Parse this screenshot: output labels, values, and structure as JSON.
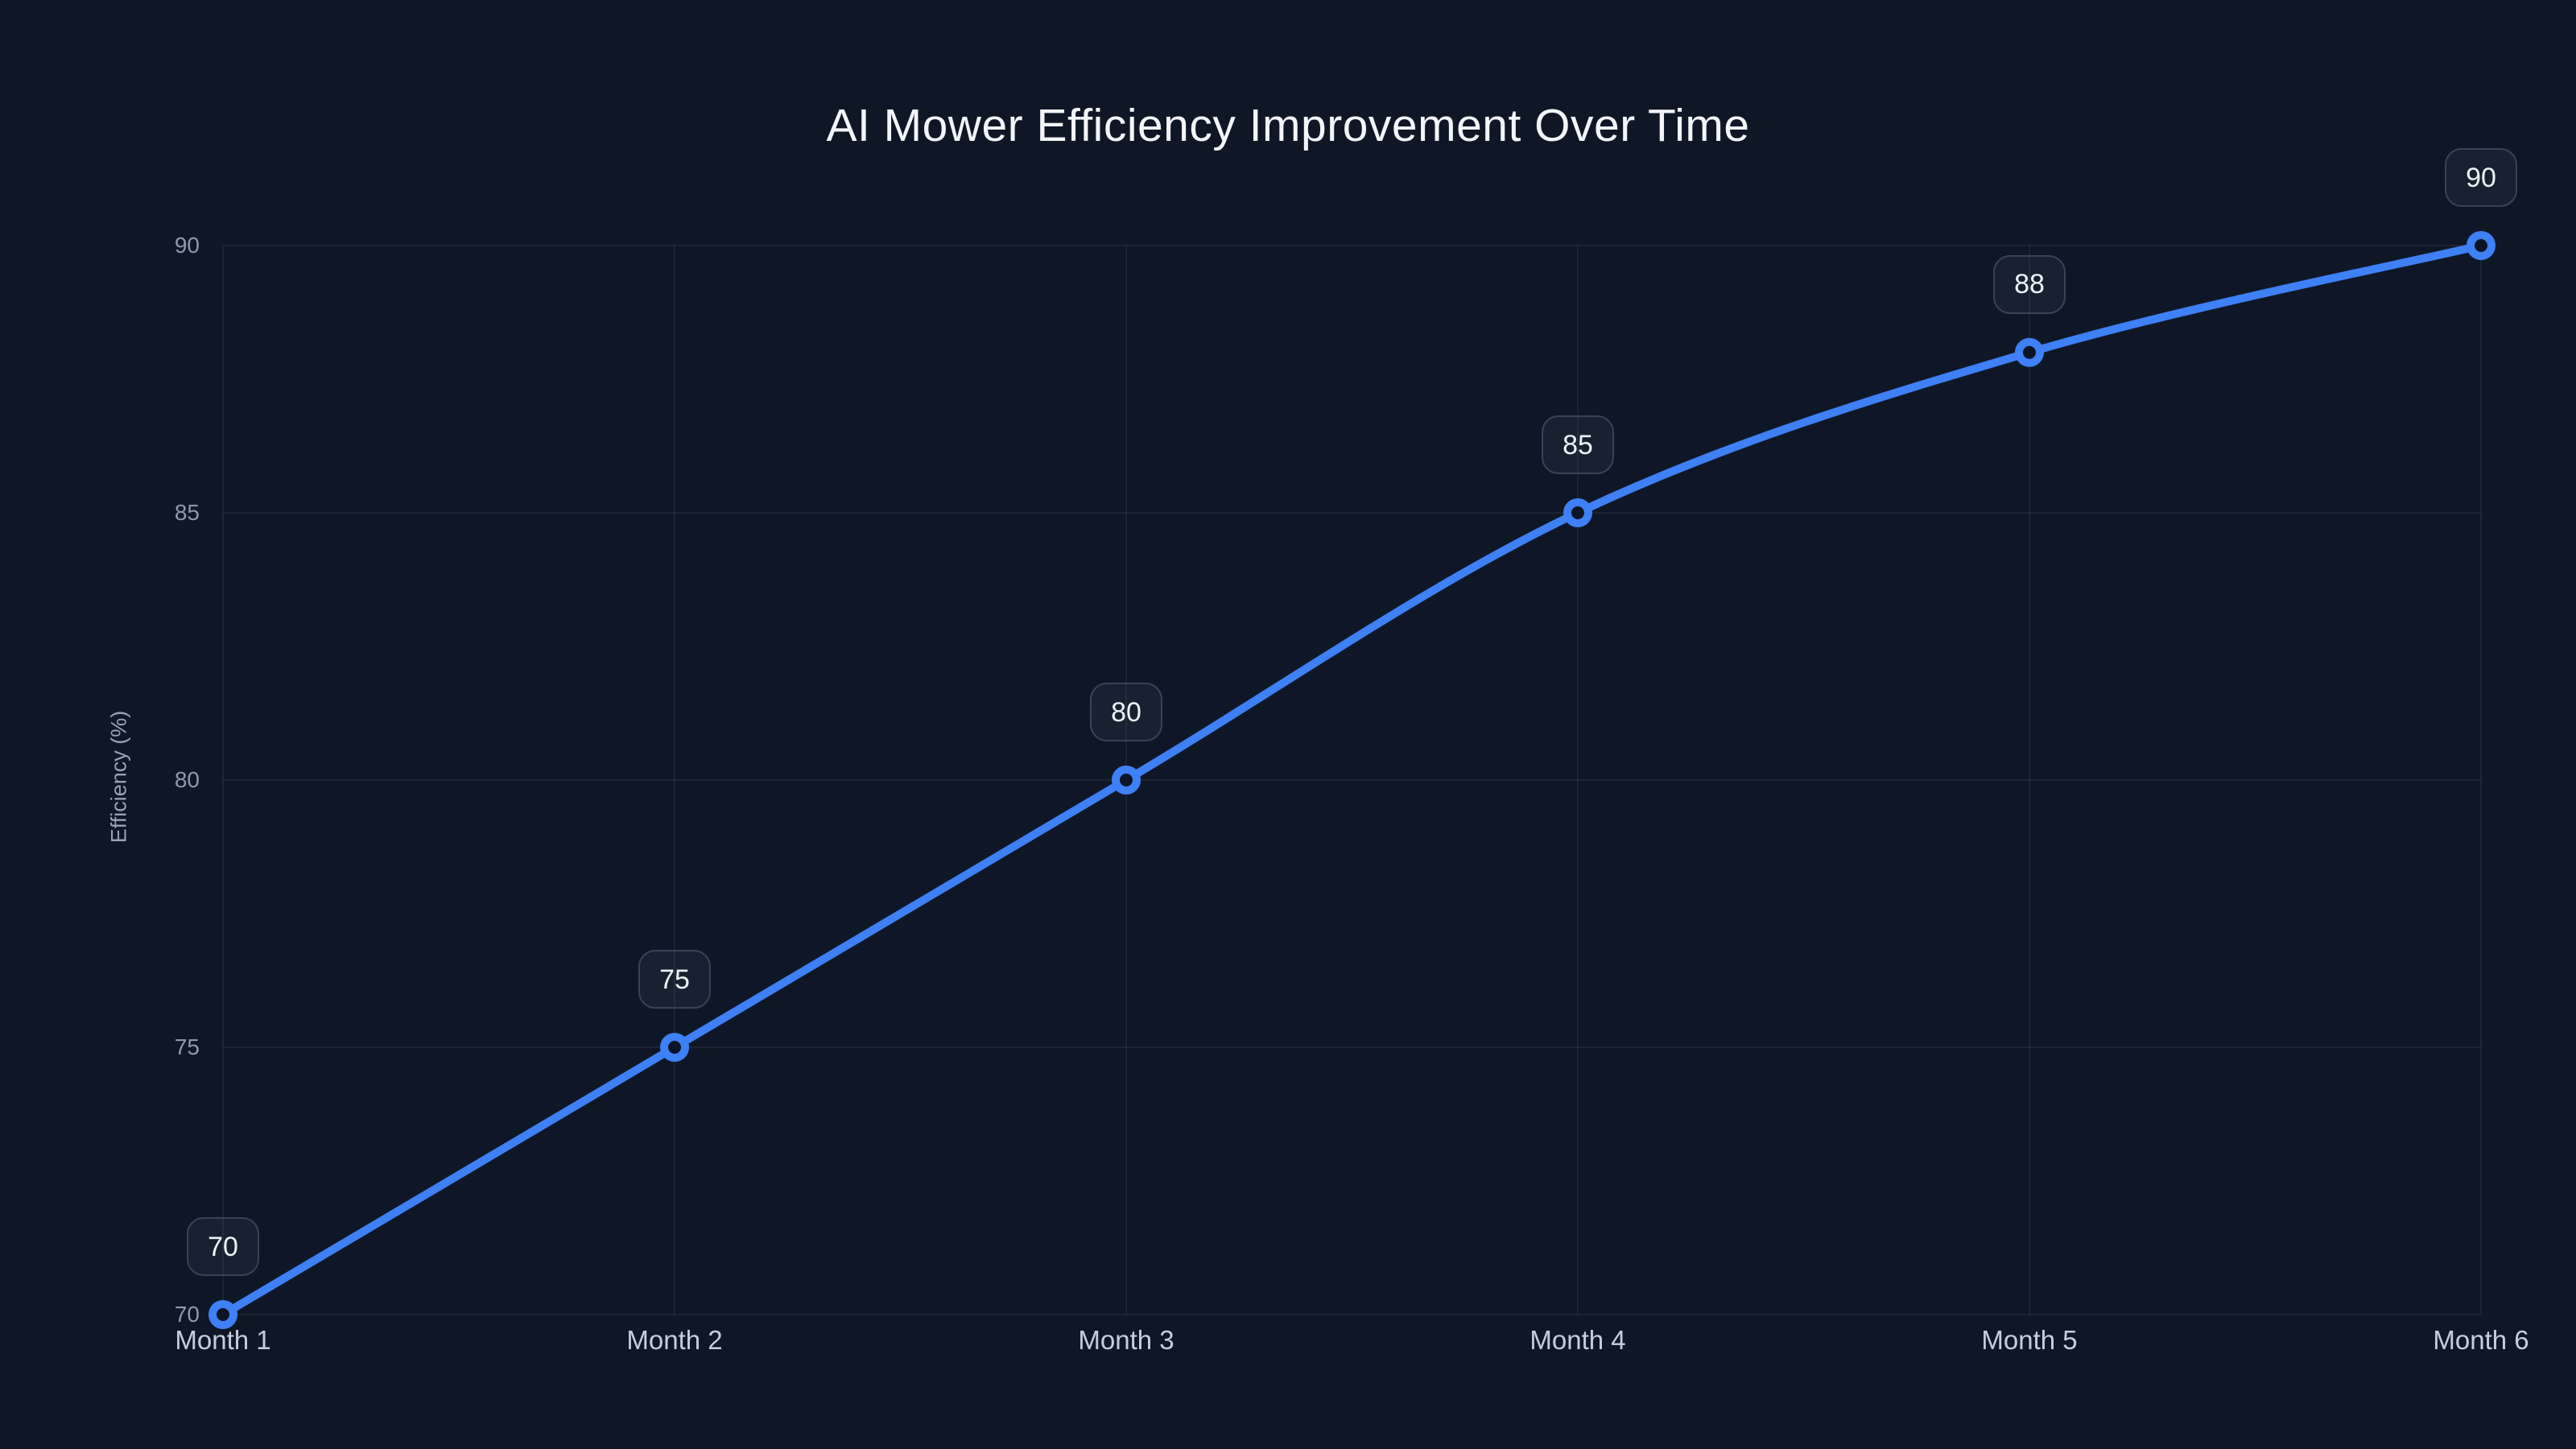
{
  "chart_data": {
    "type": "line",
    "title": "AI Mower Efficiency Improvement Over Time",
    "xlabel": "",
    "ylabel": "Efficiency (%)",
    "categories": [
      "Month 1",
      "Month 2",
      "Month 3",
      "Month 4",
      "Month 5",
      "Month 6"
    ],
    "series": [
      {
        "name": "Efficiency",
        "values": [
          70,
          75,
          80,
          85,
          88,
          90
        ]
      }
    ],
    "point_labels": [
      "70",
      "75",
      "80",
      "85",
      "88",
      "90"
    ],
    "y_ticks": [
      70,
      75,
      80,
      85,
      90
    ],
    "ylim": [
      70,
      90
    ],
    "grid": true,
    "legend_position": "none",
    "smooth": true,
    "colors": {
      "background": "#0f1727",
      "line": "#3e80f6",
      "marker_fill": "#0d1424",
      "grid": "rgba(148,163,184,0.13)",
      "y_tick_text": "#8f99ac",
      "x_tick_text": "#c7ced9",
      "title_text": "#f2f5f9",
      "label_text": "#eef1f6",
      "label_border": "#3a4356"
    }
  }
}
